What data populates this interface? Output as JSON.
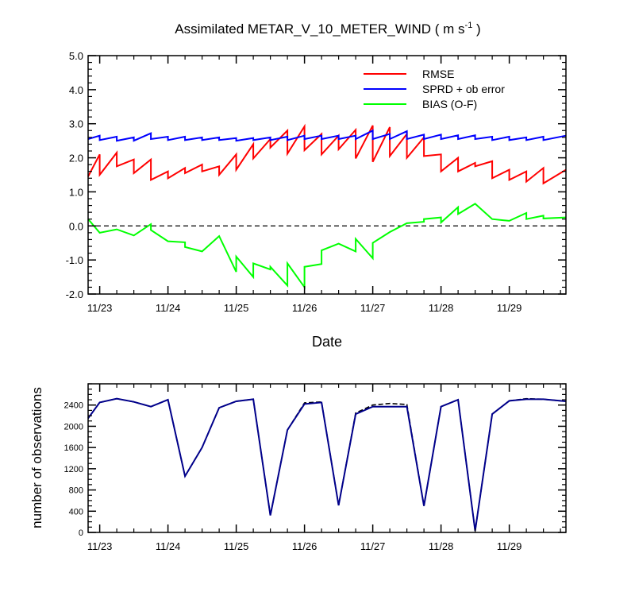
{
  "chart_data": [
    {
      "type": "line",
      "title": "Assimilated METAR_V_10_METER_WIND ( m s",
      "title_superscript": "-1",
      "title_suffix": " )",
      "xlabel": "Date",
      "ylabel": "",
      "xlim": [
        22.83,
        29.83
      ],
      "ylim": [
        -2.0,
        5.0
      ],
      "yticks": [
        "5.0",
        "4.0",
        "3.0",
        "2.0",
        "1.0",
        "0.0",
        "-1.0",
        "-2.0"
      ],
      "ytick_values": [
        5.0,
        4.0,
        3.0,
        2.0,
        1.0,
        0.0,
        -1.0,
        -2.0
      ],
      "xtick_labels": [
        "11/23",
        "11/24",
        "11/25",
        "11/26",
        "11/27",
        "11/28",
        "11/29"
      ],
      "xtick_values": [
        23,
        24,
        25,
        26,
        27,
        28,
        29
      ],
      "zero_line": "dashed",
      "grid": false,
      "legend_position": "top-right",
      "series": [
        {
          "name": "RMSE",
          "color": "#ff0000",
          "points": [
            [
              22.83,
              1.45
            ],
            [
              23.0,
              2.1
            ],
            [
              23.0,
              1.5
            ],
            [
              23.25,
              2.15
            ],
            [
              23.25,
              1.75
            ],
            [
              23.5,
              1.95
            ],
            [
              23.5,
              1.55
            ],
            [
              23.75,
              1.95
            ],
            [
              23.75,
              1.35
            ],
            [
              24.0,
              1.6
            ],
            [
              24.0,
              1.4
            ],
            [
              24.25,
              1.7
            ],
            [
              24.25,
              1.55
            ],
            [
              24.5,
              1.8
            ],
            [
              24.5,
              1.6
            ],
            [
              24.75,
              1.75
            ],
            [
              24.75,
              1.5
            ],
            [
              25.0,
              2.1
            ],
            [
              25.0,
              1.65
            ],
            [
              25.25,
              2.4
            ],
            [
              25.25,
              1.98
            ],
            [
              25.5,
              2.55
            ],
            [
              25.5,
              2.3
            ],
            [
              25.75,
              2.8
            ],
            [
              25.75,
              2.12
            ],
            [
              26.0,
              2.92
            ],
            [
              26.0,
              2.22
            ],
            [
              26.25,
              2.7
            ],
            [
              26.25,
              2.1
            ],
            [
              26.5,
              2.65
            ],
            [
              26.5,
              2.25
            ],
            [
              26.75,
              2.82
            ],
            [
              26.75,
              1.98
            ],
            [
              27.0,
              2.95
            ],
            [
              27.0,
              1.88
            ],
            [
              27.25,
              2.9
            ],
            [
              27.25,
              2.05
            ],
            [
              27.5,
              2.7
            ],
            [
              27.5,
              2.0
            ],
            [
              27.75,
              2.6
            ],
            [
              27.75,
              2.05
            ],
            [
              28.0,
              2.1
            ],
            [
              28.0,
              1.6
            ],
            [
              28.25,
              2.0
            ],
            [
              28.25,
              1.6
            ],
            [
              28.5,
              1.85
            ],
            [
              28.5,
              1.75
            ],
            [
              28.75,
              1.9
            ],
            [
              28.75,
              1.4
            ],
            [
              29.0,
              1.65
            ],
            [
              29.0,
              1.35
            ],
            [
              29.25,
              1.6
            ],
            [
              29.25,
              1.3
            ],
            [
              29.5,
              1.7
            ],
            [
              29.5,
              1.25
            ],
            [
              29.83,
              1.65
            ]
          ]
        },
        {
          "name": "SPRD + ob error",
          "color": "#0000ff",
          "points": [
            [
              22.83,
              2.55
            ],
            [
              23.0,
              2.65
            ],
            [
              23.0,
              2.52
            ],
            [
              23.25,
              2.62
            ],
            [
              23.25,
              2.5
            ],
            [
              23.5,
              2.6
            ],
            [
              23.5,
              2.5
            ],
            [
              23.75,
              2.72
            ],
            [
              23.75,
              2.55
            ],
            [
              24.0,
              2.62
            ],
            [
              24.0,
              2.52
            ],
            [
              24.25,
              2.62
            ],
            [
              24.25,
              2.52
            ],
            [
              24.5,
              2.6
            ],
            [
              24.5,
              2.52
            ],
            [
              24.75,
              2.6
            ],
            [
              24.75,
              2.52
            ],
            [
              25.0,
              2.58
            ],
            [
              25.0,
              2.5
            ],
            [
              25.25,
              2.58
            ],
            [
              25.25,
              2.52
            ],
            [
              25.5,
              2.6
            ],
            [
              25.5,
              2.52
            ],
            [
              25.75,
              2.62
            ],
            [
              25.75,
              2.52
            ],
            [
              26.0,
              2.65
            ],
            [
              26.0,
              2.55
            ],
            [
              26.25,
              2.65
            ],
            [
              26.25,
              2.55
            ],
            [
              26.5,
              2.65
            ],
            [
              26.5,
              2.55
            ],
            [
              26.75,
              2.65
            ],
            [
              26.75,
              2.55
            ],
            [
              27.0,
              2.8
            ],
            [
              27.0,
              2.55
            ],
            [
              27.25,
              2.7
            ],
            [
              27.25,
              2.55
            ],
            [
              27.5,
              2.78
            ],
            [
              27.5,
              2.55
            ],
            [
              27.75,
              2.68
            ],
            [
              27.75,
              2.55
            ],
            [
              28.0,
              2.68
            ],
            [
              28.0,
              2.55
            ],
            [
              28.25,
              2.66
            ],
            [
              28.25,
              2.55
            ],
            [
              28.5,
              2.66
            ],
            [
              28.5,
              2.55
            ],
            [
              28.75,
              2.62
            ],
            [
              28.75,
              2.52
            ],
            [
              29.0,
              2.62
            ],
            [
              29.0,
              2.52
            ],
            [
              29.25,
              2.6
            ],
            [
              29.25,
              2.52
            ],
            [
              29.5,
              2.62
            ],
            [
              29.5,
              2.52
            ],
            [
              29.83,
              2.65
            ]
          ]
        },
        {
          "name": "BIAS (O-F)",
          "color": "#00ff00",
          "points": [
            [
              22.83,
              0.2
            ],
            [
              23.0,
              -0.2
            ],
            [
              23.25,
              -0.1
            ],
            [
              23.5,
              -0.28
            ],
            [
              23.75,
              0.05
            ],
            [
              23.75,
              -0.12
            ],
            [
              24.0,
              -0.45
            ],
            [
              24.25,
              -0.48
            ],
            [
              24.25,
              -0.62
            ],
            [
              24.5,
              -0.75
            ],
            [
              24.75,
              -0.3
            ],
            [
              25.0,
              -1.35
            ],
            [
              25.0,
              -0.9
            ],
            [
              25.25,
              -1.5
            ],
            [
              25.25,
              -1.1
            ],
            [
              25.5,
              -1.28
            ],
            [
              25.5,
              -1.2
            ],
            [
              25.75,
              -1.75
            ],
            [
              25.75,
              -1.1
            ],
            [
              26.0,
              -1.8
            ],
            [
              26.0,
              -1.2
            ],
            [
              26.25,
              -1.12
            ],
            [
              26.25,
              -0.72
            ],
            [
              26.5,
              -0.52
            ],
            [
              26.75,
              -0.75
            ],
            [
              26.75,
              -0.38
            ],
            [
              27.0,
              -0.95
            ],
            [
              27.0,
              -0.5
            ],
            [
              27.25,
              -0.18
            ],
            [
              27.5,
              0.08
            ],
            [
              27.75,
              0.12
            ],
            [
              27.75,
              0.2
            ],
            [
              28.0,
              0.25
            ],
            [
              28.0,
              0.1
            ],
            [
              28.25,
              0.55
            ],
            [
              28.25,
              0.35
            ],
            [
              28.5,
              0.65
            ],
            [
              28.75,
              0.2
            ],
            [
              29.0,
              0.15
            ],
            [
              29.25,
              0.38
            ],
            [
              29.25,
              0.2
            ],
            [
              29.5,
              0.3
            ],
            [
              29.5,
              0.22
            ],
            [
              29.83,
              0.25
            ]
          ]
        }
      ]
    },
    {
      "type": "line",
      "title": "",
      "xlabel": "",
      "ylabel": "number of observations",
      "xlim": [
        22.83,
        29.83
      ],
      "ylim": [
        0,
        2800
      ],
      "yticks": [
        "2400",
        "2000",
        "1600",
        "1200",
        "800",
        "400",
        "0"
      ],
      "ytick_values": [
        2400,
        2000,
        1600,
        1200,
        800,
        400,
        0
      ],
      "xtick_labels": [
        "11/23",
        "11/24",
        "11/25",
        "11/26",
        "11/27",
        "11/28",
        "11/29"
      ],
      "xtick_values": [
        23,
        24,
        25,
        26,
        27,
        28,
        29
      ],
      "grid": false,
      "series": [
        {
          "style": "dashed",
          "color": "#000000",
          "points": [
            [
              22.83,
              2150
            ],
            [
              23.0,
              2450
            ],
            [
              23.25,
              2520
            ],
            [
              23.5,
              2460
            ],
            [
              23.75,
              2370
            ],
            [
              24.0,
              2500
            ],
            [
              24.25,
              1060
            ],
            [
              24.5,
              1600
            ],
            [
              24.75,
              2350
            ],
            [
              25.0,
              2470
            ],
            [
              25.25,
              2510
            ],
            [
              25.5,
              320
            ],
            [
              25.75,
              1930
            ],
            [
              26.0,
              2440
            ],
            [
              26.25,
              2460
            ],
            [
              26.5,
              510
            ],
            [
              26.75,
              2250
            ],
            [
              27.0,
              2400
            ],
            [
              27.25,
              2430
            ],
            [
              27.5,
              2410
            ],
            [
              27.75,
              500
            ],
            [
              28.0,
              2370
            ],
            [
              28.25,
              2500
            ],
            [
              28.5,
              30
            ],
            [
              28.75,
              2230
            ],
            [
              29.0,
              2480
            ],
            [
              29.25,
              2520
            ],
            [
              29.5,
              2510
            ],
            [
              29.83,
              2470
            ]
          ]
        },
        {
          "style": "solid",
          "color": "#00008b",
          "points": [
            [
              22.83,
              2150
            ],
            [
              23.0,
              2450
            ],
            [
              23.25,
              2520
            ],
            [
              23.5,
              2460
            ],
            [
              23.75,
              2370
            ],
            [
              24.0,
              2500
            ],
            [
              24.25,
              1060
            ],
            [
              24.5,
              1600
            ],
            [
              24.75,
              2350
            ],
            [
              25.0,
              2470
            ],
            [
              25.25,
              2510
            ],
            [
              25.5,
              320
            ],
            [
              25.75,
              1930
            ],
            [
              26.0,
              2420
            ],
            [
              26.25,
              2450
            ],
            [
              26.5,
              510
            ],
            [
              26.75,
              2230
            ],
            [
              27.0,
              2370
            ],
            [
              27.25,
              2370
            ],
            [
              27.5,
              2370
            ],
            [
              27.75,
              500
            ],
            [
              28.0,
              2370
            ],
            [
              28.25,
              2500
            ],
            [
              28.5,
              30
            ],
            [
              28.75,
              2230
            ],
            [
              29.0,
              2480
            ],
            [
              29.25,
              2510
            ],
            [
              29.5,
              2510
            ],
            [
              29.83,
              2470
            ]
          ]
        }
      ]
    }
  ]
}
